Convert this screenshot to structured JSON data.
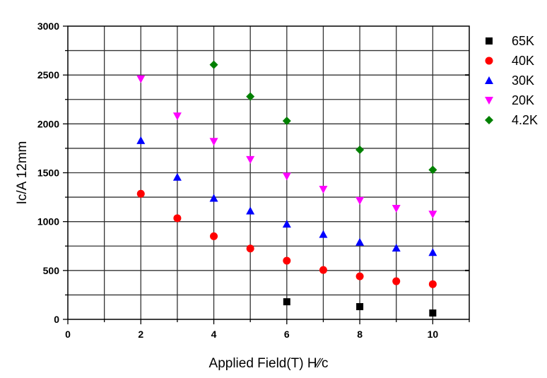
{
  "chart_data": {
    "type": "scatter",
    "title": "",
    "xlabel": "Applied Field(T) H∕∕c",
    "ylabel": "Ic/A 12mm",
    "xlim": [
      0,
      11
    ],
    "ylim": [
      0,
      3000
    ],
    "xticks": [
      0,
      2,
      4,
      6,
      8,
      10
    ],
    "yticks": [
      0,
      500,
      1000,
      1500,
      2000,
      2500,
      3000
    ],
    "grid": true,
    "legend_position": "right",
    "series": [
      {
        "name": "65K",
        "marker": "square",
        "color": "#000000",
        "x": [
          6,
          8,
          10
        ],
        "y": [
          180,
          130,
          65
        ]
      },
      {
        "name": "40K",
        "marker": "circle",
        "color": "#ff0000",
        "x": [
          2,
          3,
          4,
          5,
          6,
          7,
          8,
          9,
          10
        ],
        "y": [
          1285,
          1035,
          850,
          725,
          600,
          505,
          440,
          390,
          360
        ]
      },
      {
        "name": "30K",
        "marker": "triangle-up",
        "color": "#0000ff",
        "x": [
          2,
          3,
          4,
          5,
          6,
          7,
          8,
          9,
          10
        ],
        "y": [
          1830,
          1455,
          1240,
          1110,
          975,
          870,
          790,
          730,
          685
        ]
      },
      {
        "name": "20K",
        "marker": "triangle-down",
        "color": "#ff00ff",
        "x": [
          2,
          3,
          4,
          5,
          6,
          7,
          8,
          9,
          10
        ],
        "y": [
          2460,
          2080,
          1820,
          1635,
          1465,
          1330,
          1215,
          1135,
          1075
        ]
      },
      {
        "name": "4.2K",
        "marker": "diamond",
        "color": "#008000",
        "x": [
          4,
          5,
          6,
          8,
          10
        ],
        "y": [
          2605,
          2280,
          2030,
          1735,
          1530
        ]
      }
    ]
  }
}
